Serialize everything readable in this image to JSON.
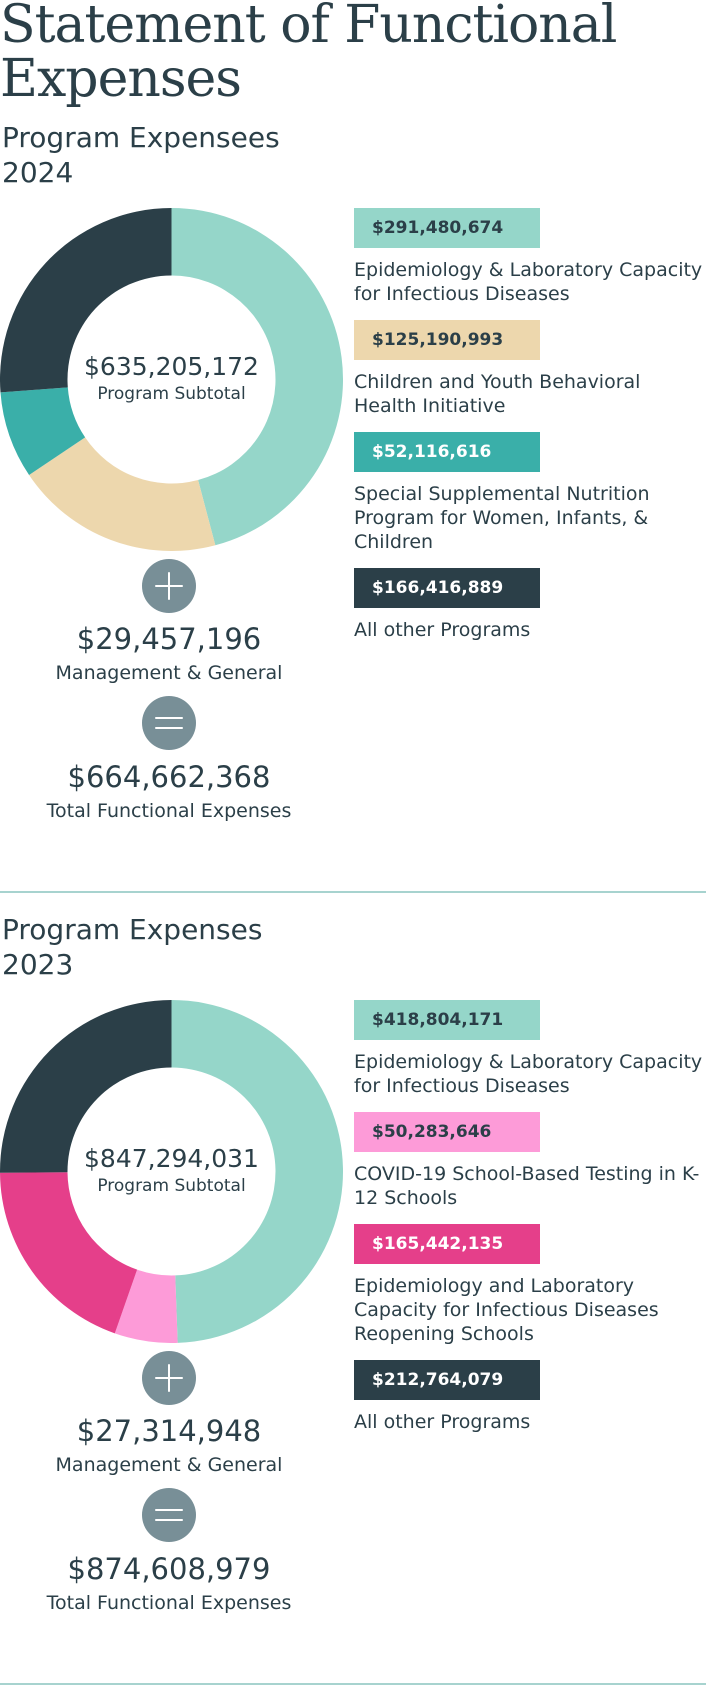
{
  "page_title": "Statement of Functional Expenses",
  "colors": {
    "text": "#2b3f48",
    "operator": "#788f97",
    "divider": "#a7d3cf"
  },
  "chart_data": [
    {
      "type": "pie",
      "title_line1": "Program Expensees",
      "title_line2": "2024",
      "center_amount": "$635,205,172",
      "center_label": "Program Subtotal",
      "slices": [
        {
          "label": "Epidemiology & Laboratory Capacity for Infectious Diseases",
          "value": 291480674,
          "display": "$291,480,674",
          "color": "#95d6c9",
          "text_color": "#2b3f48"
        },
        {
          "label": "Children and Youth Behavioral Health Initiative",
          "value": 125190993,
          "display": "$125,190,993",
          "color": "#edd7ad",
          "text_color": "#2b3f48"
        },
        {
          "label": "Special Supplemental Nutrition Program for Women, Infants, & Children",
          "value": 52116616,
          "display": "$52,116,616",
          "color": "#3aafa9",
          "text_color": "#ffffff"
        },
        {
          "label": "All other Programs",
          "value": 166416889,
          "display": "$166,416,889",
          "color": "#2b3f48",
          "text_color": "#ffffff"
        }
      ],
      "management": {
        "amount": "$29,457,196",
        "label": "Management & General"
      },
      "total": {
        "amount": "$664,662,368",
        "label": "Total Functional Expenses"
      }
    },
    {
      "type": "pie",
      "title_line1": "Program Expenses",
      "title_line2": "2023",
      "center_amount": "$847,294,031",
      "center_label": "Program Subtotal",
      "slices": [
        {
          "label": "Epidemiology & Laboratory Capacity for Infectious Diseases",
          "value": 418804171,
          "display": "$418,804,171",
          "color": "#95d6c9",
          "text_color": "#2b3f48"
        },
        {
          "label": "COVID-19 School-Based Testing in K-12 Schools",
          "value": 50283646,
          "display": "$50,283,646",
          "color": "#fd9bd8",
          "text_color": "#2b3f48"
        },
        {
          "label": "Epidemiology and Laboratory Capacity for Infectious Diseases Reopening Schools",
          "value": 165442135,
          "display": "$165,442,135",
          "color": "#e53f8a",
          "text_color": "#ffffff"
        },
        {
          "label": "All other Programs",
          "value": 212764079,
          "display": "$212,764,079",
          "color": "#2b3f48",
          "text_color": "#ffffff"
        }
      ],
      "management": {
        "amount": "$27,314,948",
        "label": "Management & General"
      },
      "total": {
        "amount": "$874,608,979",
        "label": "Total Functional Expenses"
      }
    }
  ]
}
